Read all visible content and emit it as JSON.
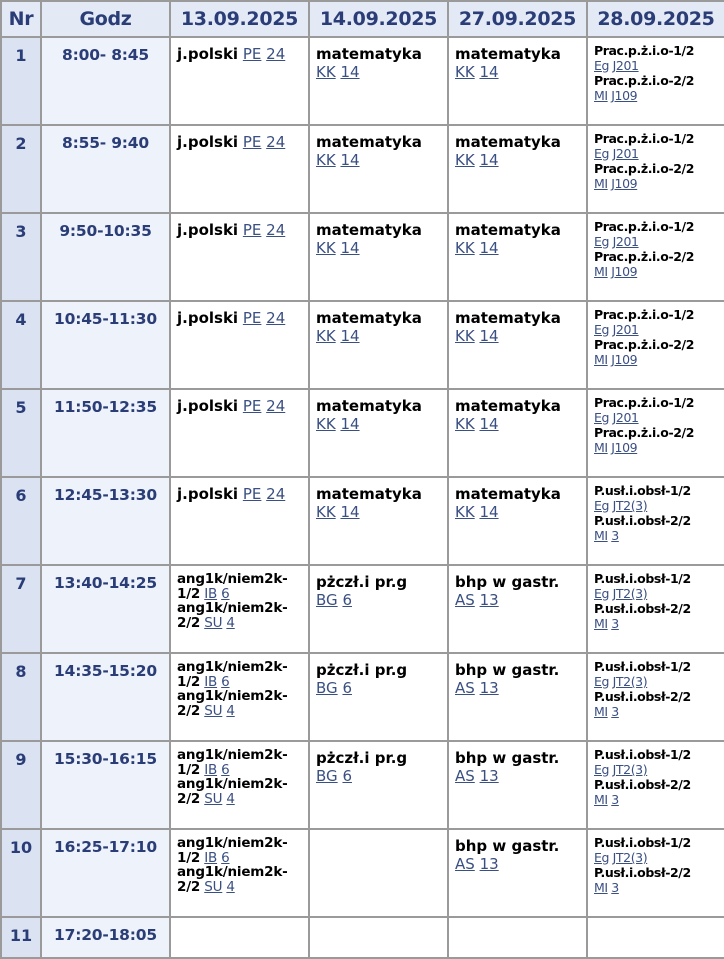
{
  "headers": [
    "Nr",
    "Godz",
    "13.09.2025",
    "14.09.2025",
    "27.09.2025",
    "28.09.2025"
  ],
  "colors": {
    "header_bg": "#e3e9f5",
    "header_text": "#2a3d77",
    "link": "#3a4f82",
    "border": "#9a9a9a"
  },
  "rows": [
    {
      "nr": "1",
      "time": "8:00- 8:45",
      "cells": [
        [
          {
            "subject": "j.polski",
            "teacher": "PE",
            "room": "24"
          }
        ],
        [
          {
            "subject": "matematyka",
            "teacher": "KK",
            "room": "14"
          }
        ],
        [
          {
            "subject": "matematyka",
            "teacher": "KK",
            "room": "14"
          }
        ],
        [
          {
            "subject": "Prac.p.ż.i.o-1/2",
            "teacher": "Eg",
            "room": "J201"
          },
          {
            "subject": "Prac.p.ż.i.o-2/2",
            "teacher": "MI",
            "room": "J109"
          }
        ]
      ]
    },
    {
      "nr": "2",
      "time": "8:55- 9:40",
      "cells": [
        [
          {
            "subject": "j.polski",
            "teacher": "PE",
            "room": "24"
          }
        ],
        [
          {
            "subject": "matematyka",
            "teacher": "KK",
            "room": "14"
          }
        ],
        [
          {
            "subject": "matematyka",
            "teacher": "KK",
            "room": "14"
          }
        ],
        [
          {
            "subject": "Prac.p.ż.i.o-1/2",
            "teacher": "Eg",
            "room": "J201"
          },
          {
            "subject": "Prac.p.ż.i.o-2/2",
            "teacher": "MI",
            "room": "J109"
          }
        ]
      ]
    },
    {
      "nr": "3",
      "time": "9:50-10:35",
      "cells": [
        [
          {
            "subject": "j.polski",
            "teacher": "PE",
            "room": "24"
          }
        ],
        [
          {
            "subject": "matematyka",
            "teacher": "KK",
            "room": "14"
          }
        ],
        [
          {
            "subject": "matematyka",
            "teacher": "KK",
            "room": "14"
          }
        ],
        [
          {
            "subject": "Prac.p.ż.i.o-1/2",
            "teacher": "Eg",
            "room": "J201"
          },
          {
            "subject": "Prac.p.ż.i.o-2/2",
            "teacher": "MI",
            "room": "J109"
          }
        ]
      ]
    },
    {
      "nr": "4",
      "time": "10:45-11:30",
      "cells": [
        [
          {
            "subject": "j.polski",
            "teacher": "PE",
            "room": "24"
          }
        ],
        [
          {
            "subject": "matematyka",
            "teacher": "KK",
            "room": "14"
          }
        ],
        [
          {
            "subject": "matematyka",
            "teacher": "KK",
            "room": "14"
          }
        ],
        [
          {
            "subject": "Prac.p.ż.i.o-1/2",
            "teacher": "Eg",
            "room": "J201"
          },
          {
            "subject": "Prac.p.ż.i.o-2/2",
            "teacher": "MI",
            "room": "J109"
          }
        ]
      ]
    },
    {
      "nr": "5",
      "time": "11:50-12:35",
      "cells": [
        [
          {
            "subject": "j.polski",
            "teacher": "PE",
            "room": "24"
          }
        ],
        [
          {
            "subject": "matematyka",
            "teacher": "KK",
            "room": "14"
          }
        ],
        [
          {
            "subject": "matematyka",
            "teacher": "KK",
            "room": "14"
          }
        ],
        [
          {
            "subject": "Prac.p.ż.i.o-1/2",
            "teacher": "Eg",
            "room": "J201"
          },
          {
            "subject": "Prac.p.ż.i.o-2/2",
            "teacher": "MI",
            "room": "J109"
          }
        ]
      ]
    },
    {
      "nr": "6",
      "time": "12:45-13:30",
      "cells": [
        [
          {
            "subject": "j.polski",
            "teacher": "PE",
            "room": "24"
          }
        ],
        [
          {
            "subject": "matematyka",
            "teacher": "KK",
            "room": "14"
          }
        ],
        [
          {
            "subject": "matematyka",
            "teacher": "KK",
            "room": "14"
          }
        ],
        [
          {
            "subject": "P.usł.i.obsł-1/2",
            "teacher": "Eg",
            "room": "JT2(3)"
          },
          {
            "subject": "P.usł.i.obsł-2/2",
            "teacher": "MI",
            "room": "3"
          }
        ]
      ]
    },
    {
      "nr": "7",
      "time": "13:40-14:25",
      "cells": [
        [
          {
            "subject": "ang1k/niem2k-1/2",
            "teacher": "IB",
            "room": "6"
          },
          {
            "subject": "ang1k/niem2k-2/2",
            "teacher": "SU",
            "room": "4"
          }
        ],
        [
          {
            "subject": "pżczł.i pr.g",
            "teacher": "BG",
            "room": "6"
          }
        ],
        [
          {
            "subject": "bhp w gastr.",
            "teacher": "AS",
            "room": "13"
          }
        ],
        [
          {
            "subject": "P.usł.i.obsł-1/2",
            "teacher": "Eg",
            "room": "JT2(3)"
          },
          {
            "subject": "P.usł.i.obsł-2/2",
            "teacher": "MI",
            "room": "3"
          }
        ]
      ]
    },
    {
      "nr": "8",
      "time": "14:35-15:20",
      "cells": [
        [
          {
            "subject": "ang1k/niem2k-1/2",
            "teacher": "IB",
            "room": "6"
          },
          {
            "subject": "ang1k/niem2k-2/2",
            "teacher": "SU",
            "room": "4"
          }
        ],
        [
          {
            "subject": "pżczł.i pr.g",
            "teacher": "BG",
            "room": "6"
          }
        ],
        [
          {
            "subject": "bhp w gastr.",
            "teacher": "AS",
            "room": "13"
          }
        ],
        [
          {
            "subject": "P.usł.i.obsł-1/2",
            "teacher": "Eg",
            "room": "JT2(3)"
          },
          {
            "subject": "P.usł.i.obsł-2/2",
            "teacher": "MI",
            "room": "3"
          }
        ]
      ]
    },
    {
      "nr": "9",
      "time": "15:30-16:15",
      "cells": [
        [
          {
            "subject": "ang1k/niem2k-1/2",
            "teacher": "IB",
            "room": "6"
          },
          {
            "subject": "ang1k/niem2k-2/2",
            "teacher": "SU",
            "room": "4"
          }
        ],
        [
          {
            "subject": "pżczł.i pr.g",
            "teacher": "BG",
            "room": "6"
          }
        ],
        [
          {
            "subject": "bhp w gastr.",
            "teacher": "AS",
            "room": "13"
          }
        ],
        [
          {
            "subject": "P.usł.i.obsł-1/2",
            "teacher": "Eg",
            "room": "JT2(3)"
          },
          {
            "subject": "P.usł.i.obsł-2/2",
            "teacher": "MI",
            "room": "3"
          }
        ]
      ]
    },
    {
      "nr": "10",
      "time": "16:25-17:10",
      "cells": [
        [
          {
            "subject": "ang1k/niem2k-1/2",
            "teacher": "IB",
            "room": "6"
          },
          {
            "subject": "ang1k/niem2k-2/2",
            "teacher": "SU",
            "room": "4"
          }
        ],
        [],
        [
          {
            "subject": "bhp w gastr.",
            "teacher": "AS",
            "room": "13"
          }
        ],
        [
          {
            "subject": "P.usł.i.obsł-1/2",
            "teacher": "Eg",
            "room": "JT2(3)"
          },
          {
            "subject": "P.usł.i.obsł-2/2",
            "teacher": "MI",
            "room": "3"
          }
        ]
      ]
    },
    {
      "nr": "11",
      "time": "17:20-18:05",
      "cells": [
        [],
        [],
        [],
        []
      ]
    }
  ]
}
